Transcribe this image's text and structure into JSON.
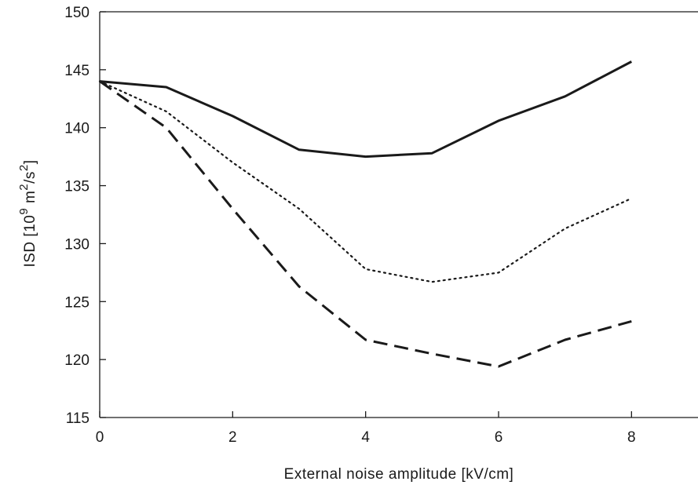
{
  "chart_data": {
    "type": "line",
    "title": "",
    "xlabel": "External noise amplitude [kV/cm]",
    "ylabel": {
      "prefix": "ISD [10",
      "exp1": "9",
      "middle": " m",
      "exp2": "2",
      "suffix": "/s",
      "exp3": "2",
      "close": "]"
    },
    "xlim": [
      0,
      9
    ],
    "ylim": [
      115,
      150
    ],
    "xticks": [
      0,
      2,
      4,
      6,
      8
    ],
    "xtick_labels": [
      "0",
      "2",
      "4",
      "6",
      "8"
    ],
    "yticks": [
      115,
      120,
      125,
      130,
      135,
      140,
      145,
      150
    ],
    "ytick_labels": [
      "115",
      "120",
      "125",
      "130",
      "135",
      "140",
      "145",
      "150"
    ],
    "grid": false,
    "legend": false,
    "x": [
      0,
      1,
      2,
      3,
      4,
      5,
      6,
      7,
      8
    ],
    "series": [
      {
        "style": "solid",
        "color": "#1a1a1a",
        "values": [
          144.0,
          143.5,
          141.0,
          138.1,
          137.5,
          137.8,
          140.6,
          142.7,
          145.7
        ]
      },
      {
        "style": "dotted",
        "color": "#1a1a1a",
        "values": [
          144.0,
          141.4,
          137.0,
          133.0,
          127.8,
          126.7,
          127.5,
          131.3,
          133.9
        ]
      },
      {
        "style": "dashed",
        "color": "#1a1a1a",
        "values": [
          144.0,
          140.0,
          133.0,
          126.3,
          121.7,
          120.5,
          119.4,
          121.7,
          123.3
        ]
      }
    ]
  }
}
